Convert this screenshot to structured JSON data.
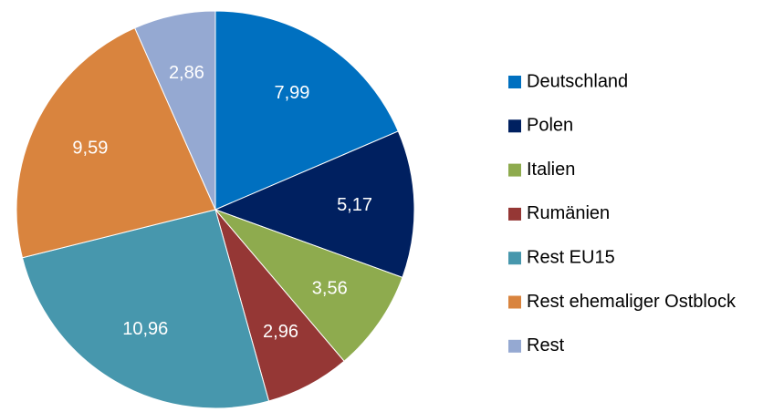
{
  "chart_data": {
    "type": "pie",
    "categories": [
      "Deutschland",
      "Polen",
      "Italien",
      "Rumänien",
      "Rest EU15",
      "Rest ehemaliger Ostblock",
      "Rest"
    ],
    "values": [
      7.99,
      5.17,
      3.56,
      2.96,
      10.96,
      9.59,
      2.86
    ],
    "value_labels": [
      "7,99",
      "5,17",
      "3,56",
      "2,96",
      "10,96",
      "9,59",
      "2,86"
    ],
    "colors": [
      "#0070c0",
      "#002060",
      "#8eab4e",
      "#953735",
      "#4797ad",
      "#d9843e",
      "#95a9d2"
    ],
    "legend": "right"
  }
}
